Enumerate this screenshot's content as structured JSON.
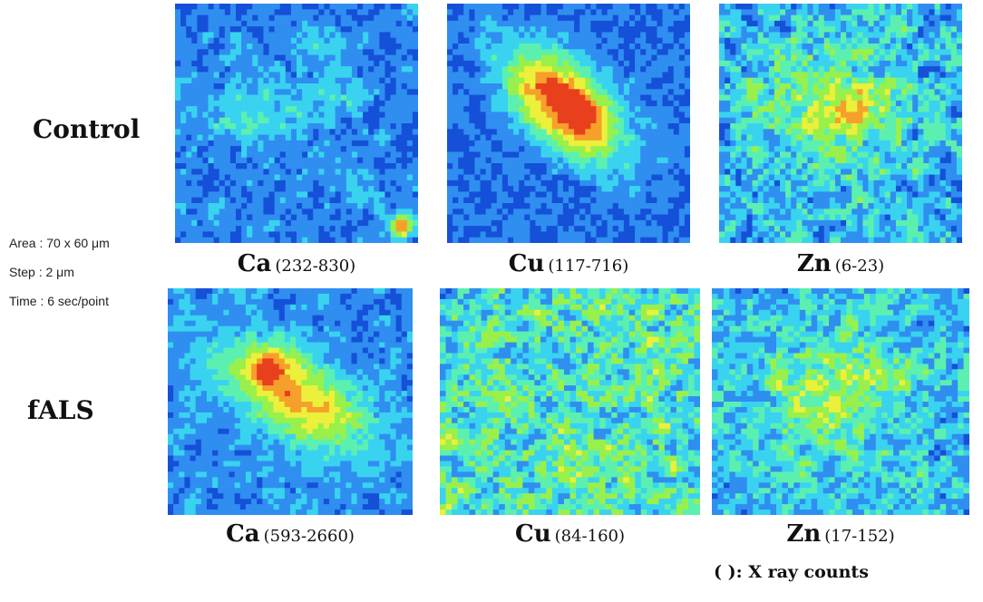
{
  "rows": [
    {
      "label": "Control"
    },
    {
      "label": "fALS"
    }
  ],
  "acquisition": {
    "area": "Area : 70 x 60 μm",
    "step": "Step : 2 μm",
    "time": "Time : 6 sec/point"
  },
  "maps": [
    {
      "element": "Ca",
      "range": "(232-830)"
    },
    {
      "element": "Cu",
      "range": "(117-716)"
    },
    {
      "element": "Zn",
      "range": "(6-23)"
    },
    {
      "element": "Ca",
      "range": "(593-2660)"
    },
    {
      "element": "Cu",
      "range": "(84-160)"
    },
    {
      "element": "Zn",
      "range": "(17-152)"
    }
  ],
  "note": "( ): X ray counts",
  "colormap": [
    "#1550d8",
    "#2f8ef0",
    "#39d3f0",
    "#5cf0b0",
    "#9af04a",
    "#ecf03a",
    "#f6a02c",
    "#e8401c"
  ]
}
